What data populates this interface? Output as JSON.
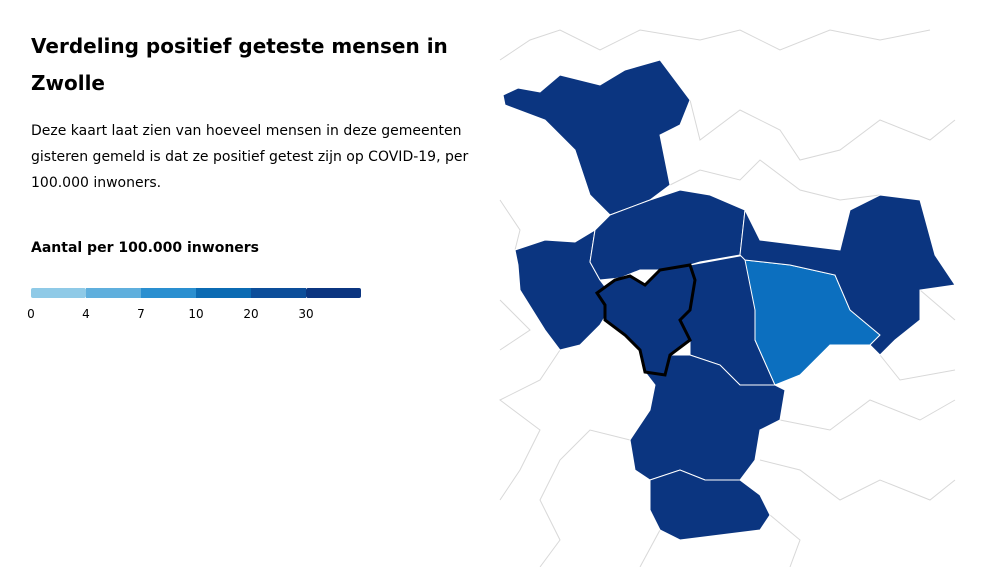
{
  "header": {
    "title": "Verdeling positief geteste mensen in Zwolle",
    "description": "Deze kaart laat zien van hoeveel mensen in deze gemeenten gisteren gemeld is dat ze positief getest zijn op COVID-19, per 100.000 inwoners."
  },
  "legend": {
    "title": "Aantal per 100.000 inwoners",
    "ticks": [
      0,
      4,
      7,
      10,
      20,
      30
    ],
    "colors": [
      "#8fcae7",
      "#5fafdd",
      "#2a8fd0",
      "#0b6bb3",
      "#0c4e9a",
      "#0b3580"
    ]
  }
}
